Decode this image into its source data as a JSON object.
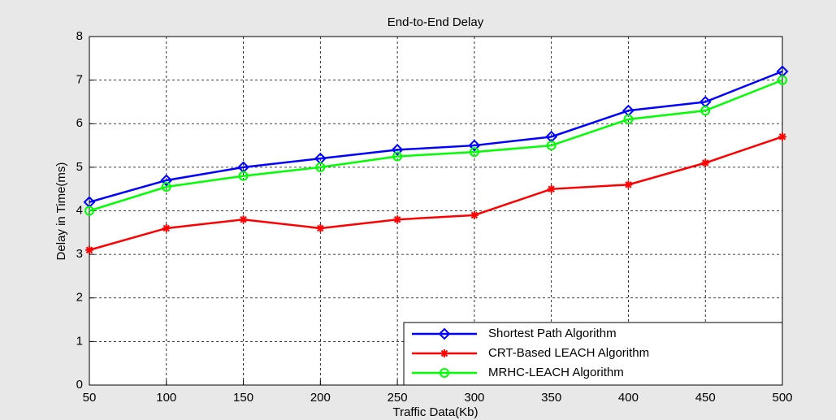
{
  "chart_data": {
    "type": "line",
    "title": "End-to-End Delay",
    "xlabel": "Traffic Data(Kb)",
    "ylabel": "Delay in Time(ms)",
    "x": [
      50,
      100,
      150,
      200,
      250,
      300,
      350,
      400,
      450,
      500
    ],
    "xlim": [
      50,
      500
    ],
    "xticks": [
      50,
      100,
      150,
      200,
      250,
      300,
      350,
      400,
      450,
      500
    ],
    "ylim": [
      0,
      8
    ],
    "yticks": [
      0,
      1,
      2,
      3,
      4,
      5,
      6,
      7,
      8
    ],
    "grid": true,
    "legend": "lower right",
    "series": [
      {
        "name": "Shortest Path Algorithm",
        "color": "#0000ff",
        "marker": "diamond",
        "values": [
          4.2,
          4.7,
          5.0,
          5.2,
          5.4,
          5.5,
          5.7,
          6.3,
          6.5,
          7.2
        ]
      },
      {
        "name": "CRT-Based LEACH Algorithm",
        "color": "#ff0000",
        "marker": "star",
        "values": [
          3.1,
          3.6,
          3.8,
          3.6,
          3.8,
          3.9,
          4.5,
          4.6,
          5.1,
          5.7
        ]
      },
      {
        "name": "MRHC-LEACH Algorithm",
        "color": "#00ff00",
        "marker": "circle",
        "values": [
          4.0,
          4.55,
          4.8,
          5.0,
          5.25,
          5.35,
          5.5,
          6.1,
          6.3,
          7.0
        ]
      }
    ]
  }
}
